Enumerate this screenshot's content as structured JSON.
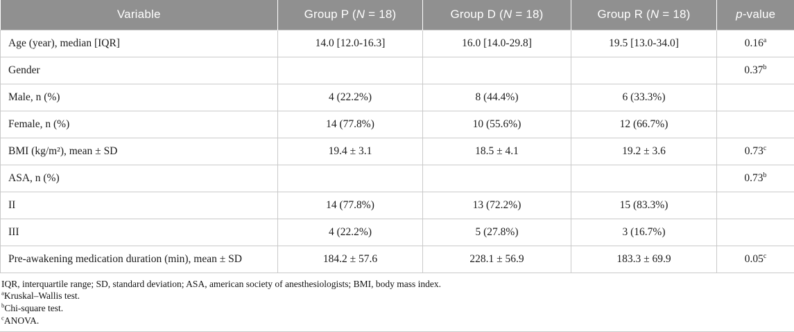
{
  "header": {
    "variable": "Variable",
    "groups": [
      {
        "prefix": "Group P (",
        "n": "N",
        "suffix": " = 18)"
      },
      {
        "prefix": "Group D (",
        "n": "N",
        "suffix": " = 18)"
      },
      {
        "prefix": "Group R (",
        "n": "N",
        "suffix": " = 18)"
      }
    ],
    "pvalue": {
      "italic": "p",
      "rest": "-value"
    }
  },
  "rows": [
    {
      "variable": "Age (year), median [IQR]",
      "p": "14.0 [12.0-16.3]",
      "d": "16.0 [14.0-29.8]",
      "r": "19.5 [13.0-34.0]",
      "pvalue": "0.16",
      "sup": "a"
    },
    {
      "variable": "Gender",
      "p": "",
      "d": "",
      "r": "",
      "pvalue": "0.37",
      "sup": "b"
    },
    {
      "variable": "Male, n (%)",
      "p": "4 (22.2%)",
      "d": "8 (44.4%)",
      "r": "6 (33.3%)",
      "pvalue": "",
      "sup": ""
    },
    {
      "variable": "Female, n (%)",
      "p": "14 (77.8%)",
      "d": "10 (55.6%)",
      "r": "12 (66.7%)",
      "pvalue": "",
      "sup": ""
    },
    {
      "variable": "BMI (kg/m²), mean ± SD",
      "p": "19.4 ± 3.1",
      "d": "18.5 ± 4.1",
      "r": "19.2 ± 3.6",
      "pvalue": "0.73",
      "sup": "c"
    },
    {
      "variable": "ASA, n (%)",
      "p": "",
      "d": "",
      "r": "",
      "pvalue": "0.73",
      "sup": "b"
    },
    {
      "variable": "II",
      "p": "14 (77.8%)",
      "d": "13 (72.2%)",
      "r": "15 (83.3%)",
      "pvalue": "",
      "sup": ""
    },
    {
      "variable": "III",
      "p": "4 (22.2%)",
      "d": "5 (27.8%)",
      "r": "3 (16.7%)",
      "pvalue": "",
      "sup": ""
    },
    {
      "variable": "Pre-awakening medication duration (min), mean ± SD",
      "p": "184.2 ± 57.6",
      "d": "228.1 ± 56.9",
      "r": "183.3 ± 69.9",
      "pvalue": "0.05",
      "sup": "c"
    }
  ],
  "footnotes": {
    "abbrev": "IQR, interquartile range; SD, standard deviation; ASA, american society of anesthesiologists; BMI, body mass index.",
    "notes": [
      {
        "sup": "a",
        "text": "Kruskal–Wallis test."
      },
      {
        "sup": "b",
        "text": "Chi-square test."
      },
      {
        "sup": "c",
        "text": "ANOVA."
      }
    ]
  },
  "colors": {
    "header_bg": "#909090",
    "header_text": "#ffffff",
    "border": "#c9c9c9"
  }
}
